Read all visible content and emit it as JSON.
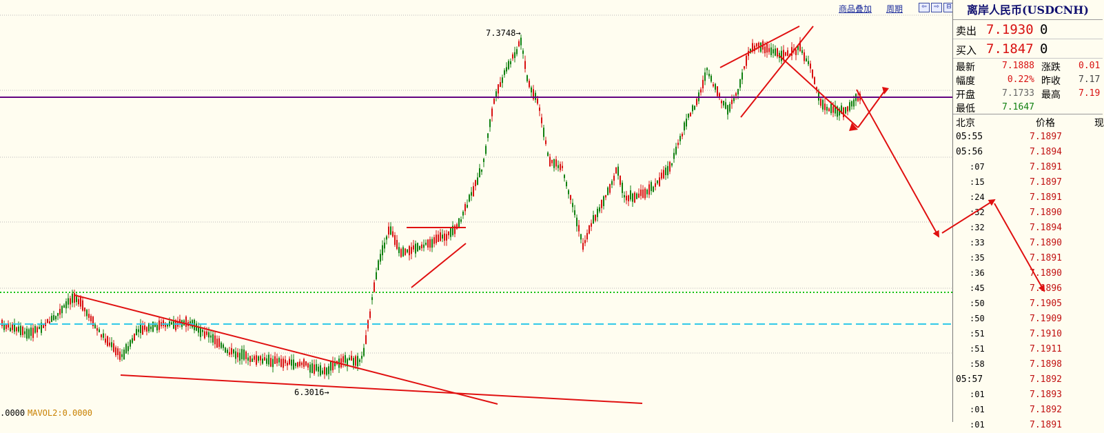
{
  "toolbar": {
    "overlay_label": "商品叠加",
    "period_label": "周期",
    "nav_buttons": [
      "⇦",
      "⇨",
      "⊟"
    ]
  },
  "chart": {
    "high_label": "7.3748",
    "low_label": "6.3016",
    "volume_text": ".0000",
    "mavol2_text": "MAVOL2:0.0000",
    "colors": {
      "background": "#fffdf0",
      "up": "#d81010",
      "down": "#108010",
      "hline_purple": "#600080",
      "hline_green": "#10c010",
      "hline_cyan": "#30c8e8",
      "trendline": "#e01010"
    }
  },
  "chart_data": {
    "type": "candlestick",
    "symbol": "USDCNH",
    "y_high": 7.3748,
    "y_low": 6.3016,
    "series": []
  },
  "panel": {
    "title": "离岸人民币(USDCNH)",
    "sell_label": "卖出",
    "sell_price": "7.1930",
    "sell_vol": "0",
    "buy_label": "买入",
    "buy_price": "7.1847",
    "buy_vol": "0",
    "stats": {
      "latest_label": "最新",
      "latest": "7.1888",
      "change_label": "涨跌",
      "change": "0.01",
      "amplitude_label": "幅度",
      "amplitude": "0.22%",
      "prev_close_label": "昨收",
      "prev_close": "7.17",
      "open_label": "开盘",
      "open": "7.1733",
      "high_label": "最高",
      "high": "7.19",
      "low_label": "最低",
      "low": "7.1647"
    },
    "ticks_header": {
      "time": "北京",
      "price": "价格",
      "extra": "现"
    },
    "ticks": [
      {
        "time": "05:55",
        "price": "7.1897",
        "major": true
      },
      {
        "time": "05:56",
        "price": "7.1894",
        "major": true
      },
      {
        "time": ":07",
        "price": "7.1891",
        "major": false
      },
      {
        "time": ":15",
        "price": "7.1897",
        "major": false
      },
      {
        "time": ":24",
        "price": "7.1891",
        "major": false
      },
      {
        "time": ":32",
        "price": "7.1890",
        "major": false
      },
      {
        "time": ":32",
        "price": "7.1894",
        "major": false
      },
      {
        "time": ":33",
        "price": "7.1890",
        "major": false
      },
      {
        "time": ":35",
        "price": "7.1891",
        "major": false
      },
      {
        "time": ":36",
        "price": "7.1890",
        "major": false
      },
      {
        "time": ":45",
        "price": "7.1896",
        "major": false
      },
      {
        "time": ":50",
        "price": "7.1905",
        "major": false
      },
      {
        "time": ":50",
        "price": "7.1909",
        "major": false
      },
      {
        "time": ":51",
        "price": "7.1910",
        "major": false
      },
      {
        "time": ":51",
        "price": "7.1911",
        "major": false
      },
      {
        "time": ":58",
        "price": "7.1898",
        "major": false
      },
      {
        "time": "05:57",
        "price": "7.1892",
        "major": true
      },
      {
        "time": ":01",
        "price": "7.1893",
        "major": false
      },
      {
        "time": ":01",
        "price": "7.1892",
        "major": false
      },
      {
        "time": ":01",
        "price": "7.1891",
        "major": false
      }
    ]
  }
}
